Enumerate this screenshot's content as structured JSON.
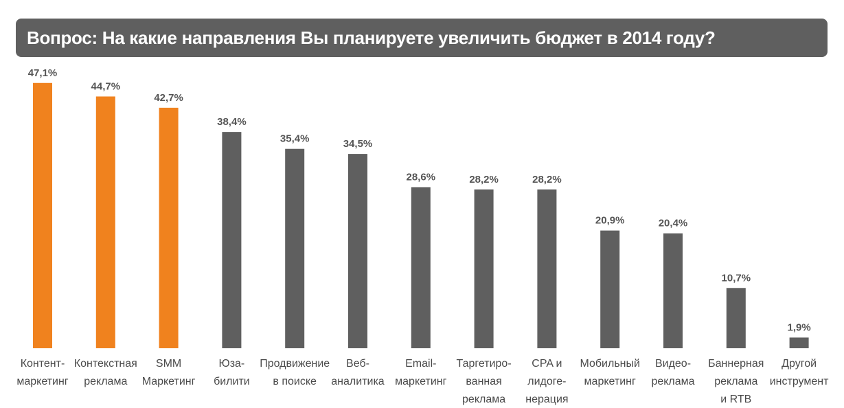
{
  "chart_data": {
    "type": "bar",
    "title": "Вопрос: На какие направления Вы планируете увеличить бюджет в 2014 году?",
    "xlabel": "",
    "ylabel": "",
    "ylim": [
      0,
      50
    ],
    "grid": false,
    "legend": "none",
    "categories": [
      [
        "Контент-",
        "маркетинг"
      ],
      [
        "Контекстная",
        "реклама"
      ],
      [
        "SMM",
        "Маркетинг"
      ],
      [
        "Юза-",
        "билити"
      ],
      [
        "Продвижение",
        "в поиске"
      ],
      [
        "Веб-",
        "аналитика"
      ],
      [
        "Email-",
        "маркетинг"
      ],
      [
        "Таргетиро-",
        "ванная",
        "реклама"
      ],
      [
        "CPA и",
        "лидоге-",
        "нерация"
      ],
      [
        "Мобильный",
        "маркетинг"
      ],
      [
        "Видео-",
        "реклама"
      ],
      [
        "Баннерная",
        "реклама",
        "и RTB"
      ],
      [
        "Другой",
        "инструмент"
      ]
    ],
    "values": [
      47.1,
      44.7,
      42.7,
      38.4,
      35.4,
      34.5,
      28.6,
      28.2,
      28.2,
      20.9,
      20.4,
      10.7,
      1.9
    ],
    "value_labels": [
      "47,1%",
      "44,7%",
      "42,7%",
      "38,4%",
      "35,4%",
      "34,5%",
      "28,6%",
      "28,2%",
      "28,2%",
      "20,9%",
      "20,4%",
      "10,7%",
      "1,9%"
    ],
    "highlighted_count": 3,
    "colors": {
      "highlight": "#f0821e",
      "default": "#5f5f5f",
      "title_bg": "#5f5f5f"
    }
  }
}
